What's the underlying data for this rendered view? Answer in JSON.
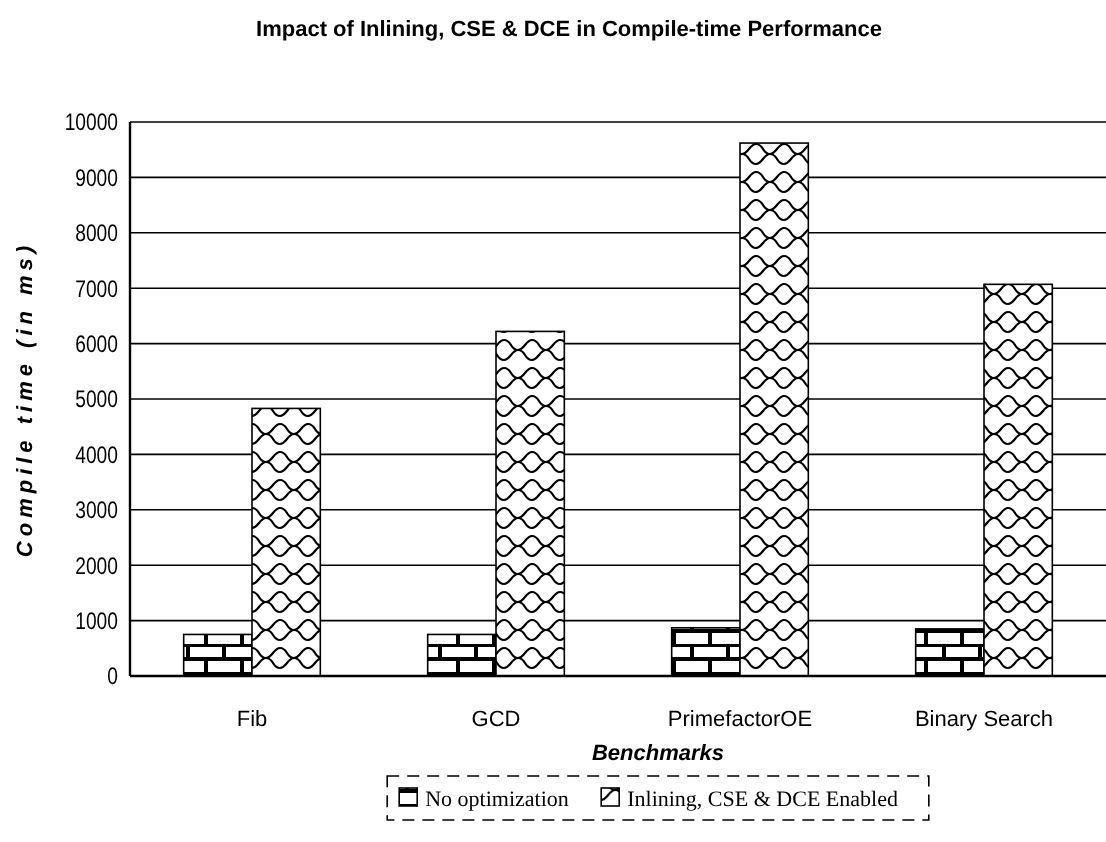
{
  "chart_data": {
    "type": "bar",
    "title": "Impact of Inlining, CSE & DCE in Compile-time Performance",
    "xlabel": "Benchmarks",
    "ylabel": "Compile time (in ms)",
    "categories": [
      "Fib",
      "GCD",
      "PrimefactorOE",
      "Binary Search"
    ],
    "series": [
      {
        "name": "No optimization",
        "color": "#000000",
        "values": [
          750,
          750,
          870,
          850
        ]
      },
      {
        "name": "Inlining, CSE & DCE Enabled",
        "color": "#000000",
        "values": [
          4830,
          6220,
          9620,
          7070
        ]
      }
    ],
    "ylim": [
      0,
      10000
    ],
    "yticks": [
      0,
      1000,
      2000,
      3000,
      4000,
      5000,
      6000,
      7000,
      8000,
      9000,
      10000
    ],
    "grid": "y",
    "legend": "bottom"
  }
}
